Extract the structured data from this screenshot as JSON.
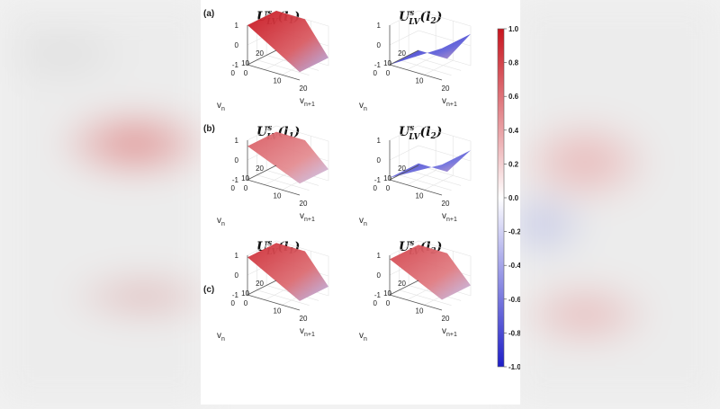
{
  "chart_data": {
    "type": "surface",
    "panels": [
      {
        "label": "(a)",
        "subplots": [
          {
            "title_main": "U",
            "title_sup": "s",
            "title_sub": "LV",
            "title_arg": "(l",
            "title_arg_sub": "1",
            "title_close": ")",
            "color_value": 1.0
          },
          {
            "title_main": "U",
            "title_sup": "s",
            "title_sub": "LV",
            "title_arg": "(l",
            "title_arg_sub": "2",
            "title_close": ")",
            "color_value": -1.0
          }
        ]
      },
      {
        "label": "(b)",
        "subplots": [
          {
            "title_main": "U",
            "title_sup": "s",
            "title_sub": "LV",
            "title_arg": "(l",
            "title_arg_sub": "1",
            "title_close": ")",
            "color_value": 0.7
          },
          {
            "title_main": "U",
            "title_sup": "s",
            "title_sub": "LV",
            "title_arg": "(l",
            "title_arg_sub": "2",
            "title_close": ")",
            "color_value": -0.9
          }
        ]
      },
      {
        "label": "(c)",
        "subplots": [
          {
            "title_main": "U",
            "title_sup": "s",
            "title_sub": "LV",
            "title_arg": "(l",
            "title_arg_sub": "1",
            "title_close": ")",
            "color_value": 0.9
          },
          {
            "title_main": "U",
            "title_sup": "s",
            "title_sub": "LV",
            "title_arg": "(l",
            "title_arg_sub": "2",
            "title_close": ")",
            "color_value": 0.8
          }
        ]
      }
    ],
    "z_ticks": [
      "1",
      "0",
      "-1"
    ],
    "vn_ticks": [
      "20",
      "10",
      "0"
    ],
    "vn1_ticks": [
      "0",
      "10",
      "20"
    ],
    "ylabel_main": "v",
    "ylabel_sub": "n",
    "xlabel_main": "v",
    "xlabel_sub": "n+1",
    "zlim": [
      -1,
      1
    ],
    "colorbar": {
      "ticks": [
        "1.0",
        "0.8",
        "0.6",
        "0.4",
        "0.2",
        "0.0",
        "-0.2",
        "-0.4",
        "-0.6",
        "-0.8",
        "-1.0"
      ],
      "range": [
        -1,
        1
      ],
      "colors": {
        "high": "#c8141e",
        "mid": "#ffffff",
        "low": "#1e1ec8"
      }
    }
  }
}
